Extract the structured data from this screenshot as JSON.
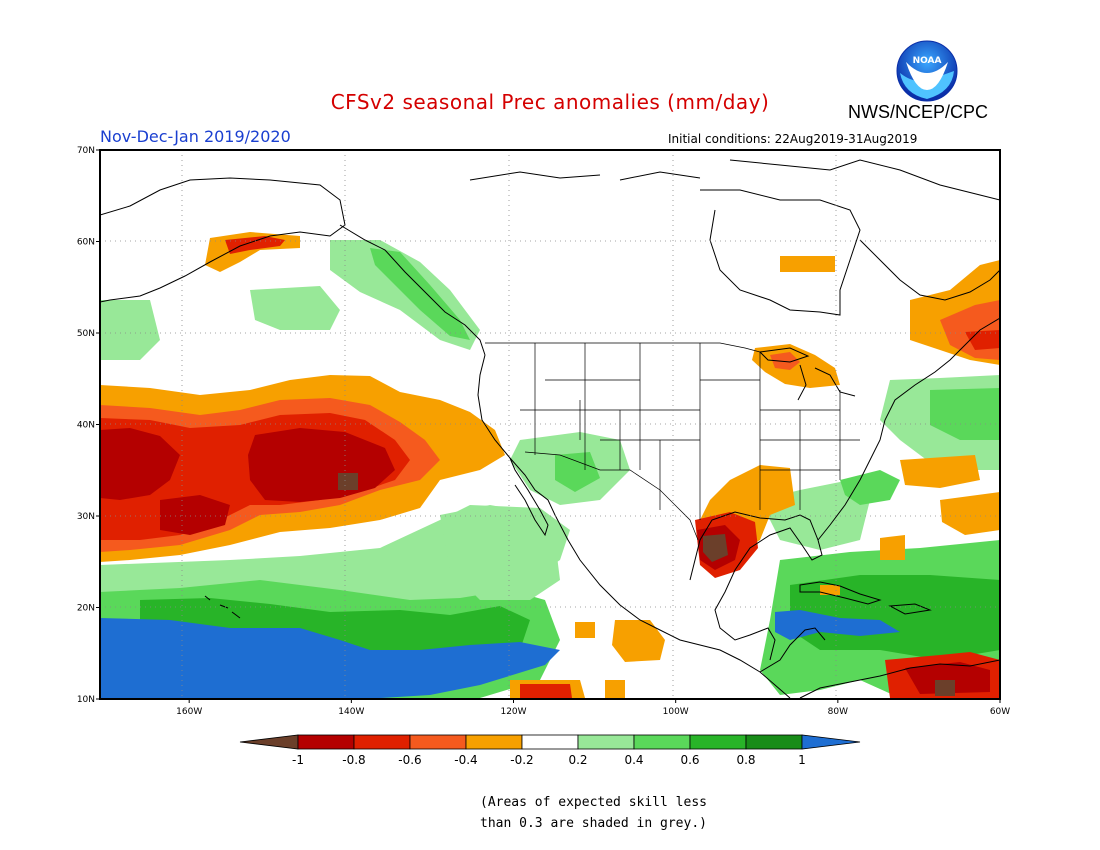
{
  "header": {
    "title": "CFSv2 seasonal Prec anomalies (mm/day)",
    "agency": "NWS/NCEP/CPC",
    "period": "Nov-Dec-Jan 2019/2020",
    "initial_conditions": "Initial conditions: 22Aug2019-31Aug2019",
    "logo_text": "NOAA"
  },
  "map": {
    "lat_labels": [
      "70N",
      "60N",
      "50N",
      "40N",
      "30N",
      "20N",
      "10N"
    ],
    "lon_labels": [
      "160W",
      "140W",
      "120W",
      "100W",
      "80W",
      "60W"
    ],
    "lat_values": [
      70,
      60,
      50,
      40,
      30,
      20,
      10
    ],
    "lon_values": [
      -160,
      -140,
      -120,
      -100,
      -80,
      -60
    ],
    "extent": {
      "lon_min": -171,
      "lon_max": -60,
      "lat_min": 10,
      "lat_max": 70
    }
  },
  "colorbar": {
    "tick_labels": [
      "-1",
      "-0.8",
      "-0.6",
      "-0.4",
      "-0.2",
      "0.2",
      "0.4",
      "0.6",
      "0.8",
      "1"
    ],
    "colors": [
      "#6b3f2a",
      "#b40000",
      "#e02000",
      "#f55a1e",
      "#f7a000",
      "#ffffff",
      "#98e898",
      "#5ad85a",
      "#28b428",
      "#188c18",
      "#1e6ed2"
    ]
  },
  "note": {
    "line1": "(Areas of expected skill less",
    "line2": "than 0.3 are shaded in grey.)"
  },
  "palette": {
    "brown": "#6b3f2a",
    "dark_red": "#b40000",
    "red": "#e02000",
    "orange_red": "#f55a1e",
    "orange": "#f7a000",
    "light_green": "#98e898",
    "green": "#5ad85a",
    "mid_green": "#28b428",
    "dark_green": "#188c18",
    "blue": "#1e6ed2"
  }
}
